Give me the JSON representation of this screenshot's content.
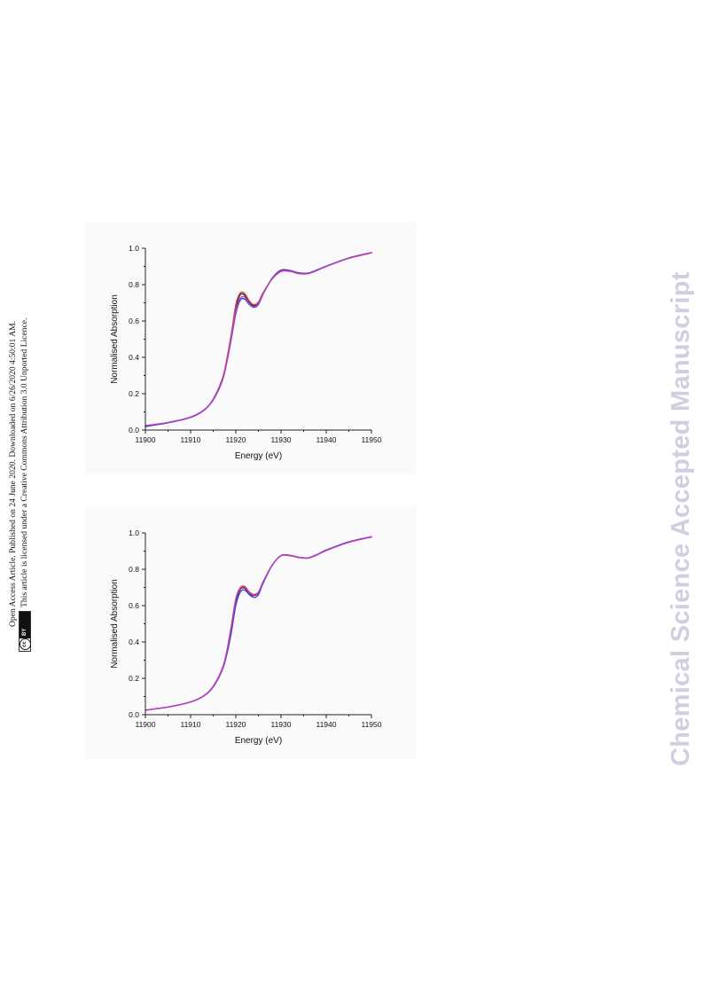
{
  "side_note": {
    "line1": "Open Access Article. Published on 24 June 2020. Downloaded on 6/26/2020 4:50:01 AM.",
    "line2": "This article is licensed under a Creative Commons Attribution 3.0 Unported Licence.",
    "license_badge_cc": "cc",
    "license_badge_by": "BY"
  },
  "watermark": "Chemical Science Accepted Manuscript",
  "colors": {
    "series_black": "#222222",
    "series_red": "#d04a3a",
    "series_blue": "#2e46d6",
    "series_magenta": "#c03cc8",
    "watermark": "#cfcfe2"
  },
  "chart_data": [
    {
      "type": "line",
      "title": "",
      "xlabel": "Energy (eV)",
      "ylabel": "Normalised Absorption",
      "xlim": [
        11900,
        11950
      ],
      "ylim": [
        0.0,
        1.0
      ],
      "xticks": [
        "11900",
        "11910",
        "11920",
        "11930",
        "11940",
        "11950"
      ],
      "yticks": [
        "0.0",
        "0.2",
        "0.4",
        "0.6",
        "0.8",
        "1.0"
      ],
      "grid": false,
      "series": [
        {
          "color": "#222222",
          "x": [
            11900,
            11905,
            11910,
            11913,
            11915,
            11917,
            11918,
            11919,
            11920,
            11921,
            11922,
            11923,
            11924,
            11925,
            11926,
            11928,
            11930,
            11932,
            11934,
            11936,
            11938,
            11940,
            11945,
            11950
          ],
          "y": [
            0.02,
            0.04,
            0.07,
            0.11,
            0.17,
            0.28,
            0.38,
            0.52,
            0.67,
            0.745,
            0.74,
            0.7,
            0.685,
            0.7,
            0.75,
            0.83,
            0.875,
            0.875,
            0.862,
            0.862,
            0.88,
            0.9,
            0.945,
            0.975
          ]
        },
        {
          "color": "#d04a3a",
          "x": [
            11900,
            11905,
            11910,
            11913,
            11915,
            11917,
            11918,
            11919,
            11920,
            11921,
            11922,
            11923,
            11924,
            11925,
            11926,
            11928,
            11930,
            11932,
            11934,
            11936,
            11938,
            11940,
            11945,
            11950
          ],
          "y": [
            0.02,
            0.04,
            0.07,
            0.11,
            0.17,
            0.28,
            0.39,
            0.53,
            0.69,
            0.755,
            0.75,
            0.71,
            0.69,
            0.705,
            0.755,
            0.83,
            0.872,
            0.872,
            0.86,
            0.86,
            0.878,
            0.9,
            0.945,
            0.975
          ]
        },
        {
          "color": "#2e46d6",
          "x": [
            11900,
            11905,
            11910,
            11913,
            11915,
            11917,
            11918,
            11919,
            11920,
            11921,
            11922,
            11923,
            11924,
            11925,
            11926,
            11928,
            11930,
            11932,
            11934,
            11936,
            11938,
            11940,
            11945,
            11950
          ],
          "y": [
            0.02,
            0.04,
            0.07,
            0.11,
            0.165,
            0.27,
            0.37,
            0.5,
            0.64,
            0.715,
            0.72,
            0.69,
            0.675,
            0.69,
            0.745,
            0.835,
            0.88,
            0.878,
            0.865,
            0.864,
            0.882,
            0.902,
            0.947,
            0.977
          ]
        },
        {
          "color": "#c03cc8",
          "x": [
            11900,
            11905,
            11910,
            11913,
            11915,
            11917,
            11918,
            11919,
            11920,
            11921,
            11922,
            11923,
            11924,
            11925,
            11926,
            11928,
            11930,
            11932,
            11934,
            11936,
            11938,
            11940,
            11945,
            11950
          ],
          "y": [
            0.025,
            0.042,
            0.072,
            0.112,
            0.168,
            0.275,
            0.375,
            0.51,
            0.655,
            0.725,
            0.73,
            0.695,
            0.68,
            0.695,
            0.748,
            0.832,
            0.874,
            0.874,
            0.862,
            0.861,
            0.879,
            0.9,
            0.946,
            0.976
          ]
        }
      ]
    },
    {
      "type": "line",
      "title": "",
      "xlabel": "Energy (eV)",
      "ylabel": "Normalised Absorption",
      "xlim": [
        11900,
        11950
      ],
      "ylim": [
        0.0,
        1.0
      ],
      "xticks": [
        "11900",
        "11910",
        "11920",
        "11930",
        "11940",
        "11950"
      ],
      "yticks": [
        "0.0",
        "0.2",
        "0.4",
        "0.6",
        "0.8",
        "1.0"
      ],
      "grid": false,
      "series": [
        {
          "color": "#222222",
          "x": [
            11900,
            11905,
            11910,
            11913,
            11915,
            11917,
            11918,
            11919,
            11920,
            11921,
            11922,
            11923,
            11924,
            11925,
            11926,
            11928,
            11930,
            11932,
            11934,
            11936,
            11938,
            11940,
            11945,
            11950
          ],
          "y": [
            0.025,
            0.042,
            0.07,
            0.105,
            0.155,
            0.25,
            0.34,
            0.47,
            0.62,
            0.69,
            0.695,
            0.665,
            0.655,
            0.67,
            0.725,
            0.82,
            0.875,
            0.875,
            0.865,
            0.862,
            0.88,
            0.905,
            0.95,
            0.978
          ]
        },
        {
          "color": "#d04a3a",
          "x": [
            11900,
            11905,
            11910,
            11913,
            11915,
            11917,
            11918,
            11919,
            11920,
            11921,
            11922,
            11923,
            11924,
            11925,
            11926,
            11928,
            11930,
            11932,
            11934,
            11936,
            11938,
            11940,
            11945,
            11950
          ],
          "y": [
            0.025,
            0.042,
            0.07,
            0.106,
            0.157,
            0.255,
            0.35,
            0.49,
            0.64,
            0.7,
            0.705,
            0.675,
            0.662,
            0.675,
            0.73,
            0.822,
            0.874,
            0.874,
            0.864,
            0.861,
            0.879,
            0.903,
            0.948,
            0.977
          ]
        },
        {
          "color": "#2e46d6",
          "x": [
            11900,
            11905,
            11910,
            11913,
            11915,
            11917,
            11918,
            11919,
            11920,
            11921,
            11922,
            11923,
            11924,
            11925,
            11926,
            11928,
            11930,
            11932,
            11934,
            11936,
            11938,
            11940,
            11945,
            11950
          ],
          "y": [
            0.025,
            0.042,
            0.07,
            0.104,
            0.152,
            0.245,
            0.33,
            0.45,
            0.6,
            0.675,
            0.685,
            0.66,
            0.645,
            0.66,
            0.72,
            0.82,
            0.876,
            0.877,
            0.866,
            0.863,
            0.882,
            0.906,
            0.951,
            0.979
          ]
        },
        {
          "color": "#c03cc8",
          "x": [
            11900,
            11905,
            11910,
            11913,
            11915,
            11917,
            11918,
            11919,
            11920,
            11921,
            11922,
            11923,
            11924,
            11925,
            11926,
            11928,
            11930,
            11932,
            11934,
            11936,
            11938,
            11940,
            11945,
            11950
          ],
          "y": [
            0.025,
            0.042,
            0.07,
            0.105,
            0.155,
            0.25,
            0.345,
            0.48,
            0.63,
            0.695,
            0.7,
            0.67,
            0.658,
            0.672,
            0.728,
            0.821,
            0.875,
            0.876,
            0.865,
            0.862,
            0.88,
            0.904,
            0.949,
            0.978
          ]
        }
      ]
    }
  ]
}
